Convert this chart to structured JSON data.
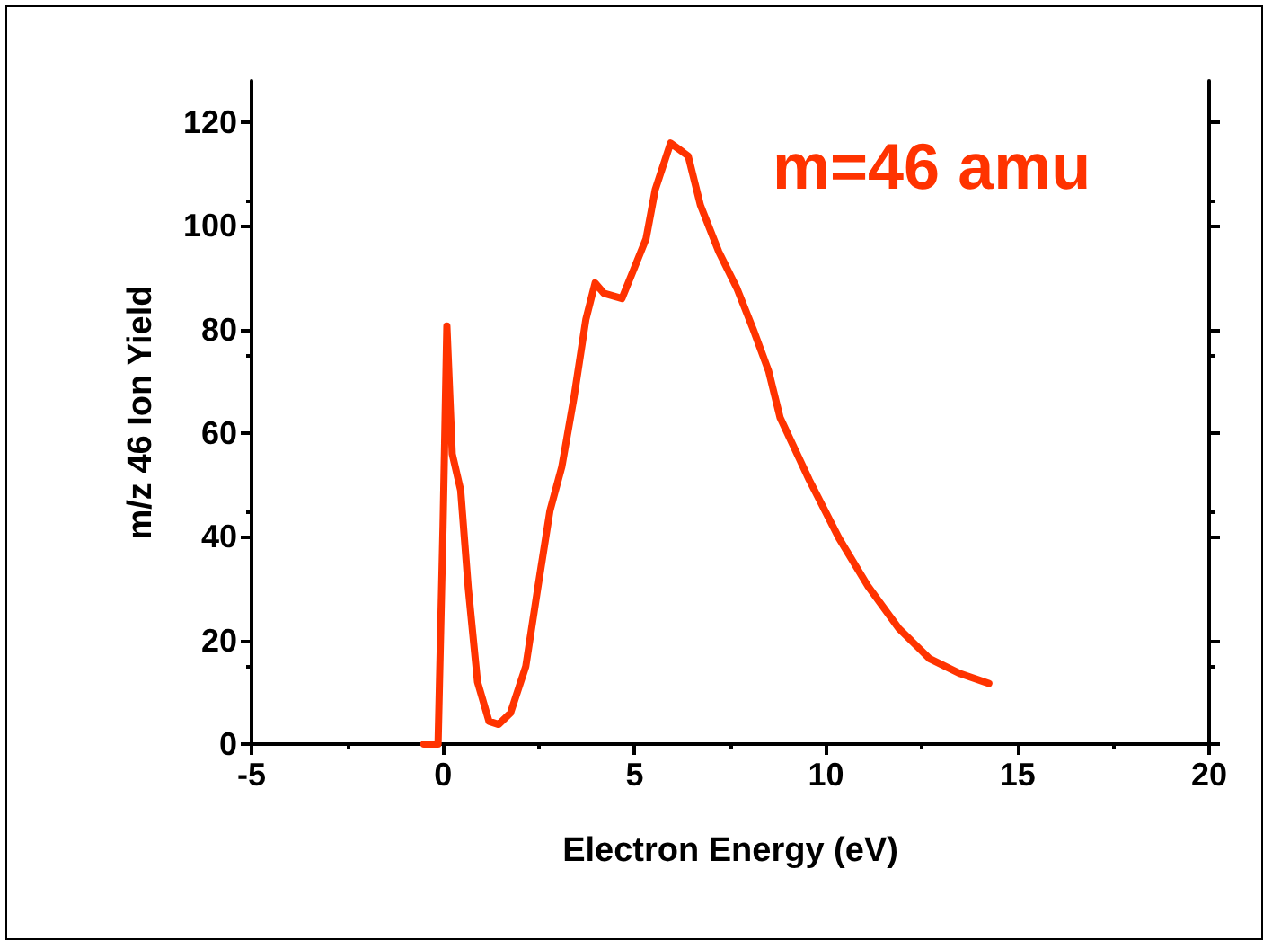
{
  "chart_data": {
    "type": "line",
    "xlabel": "Electron Energy (eV)",
    "ylabel": "m/z 46 Ion Yield",
    "annotations": [
      "m=46 amu"
    ],
    "series": [
      {
        "color": "#ff3300",
        "x": [
          -0.5,
          -0.13,
          0,
          0.1,
          0.24,
          0.46,
          0.66,
          0.9,
          1.2,
          1.45,
          1.76,
          2.16,
          2.47,
          2.79,
          3.1,
          3.42,
          3.73,
          3.97,
          4.2,
          4.67,
          5.0,
          5.3,
          5.54,
          5.94,
          6.4,
          6.72,
          7.2,
          7.67,
          8.1,
          8.5,
          8.8,
          9.56,
          10.34,
          11.1,
          11.9,
          12.7,
          13.5,
          14.25
        ],
        "values": [
          0,
          0,
          42,
          80.7,
          56,
          49,
          30,
          12,
          4.4,
          3.8,
          6,
          15,
          30,
          45,
          53.5,
          67,
          82,
          89,
          87,
          86,
          92,
          97.5,
          107,
          116,
          113.5,
          104,
          95,
          88,
          80,
          72,
          63,
          51,
          39.7,
          30.4,
          22.3,
          16.5,
          13.6,
          11.7
        ]
      }
    ],
    "xlim": [
      -5,
      20
    ],
    "xticks": [
      -5,
      0,
      5,
      10,
      15,
      20
    ],
    "ylim": [
      0,
      128
    ],
    "yticks": [
      0,
      20,
      40,
      60,
      80,
      100,
      120
    ],
    "marker": "none",
    "line_style": "solid"
  }
}
